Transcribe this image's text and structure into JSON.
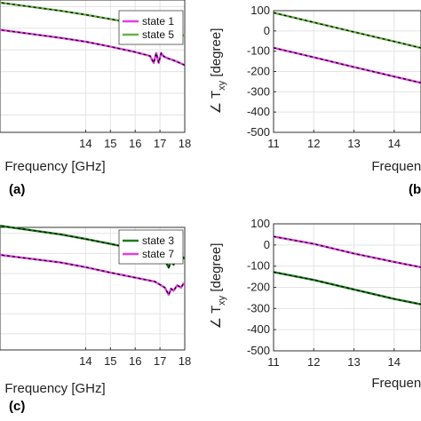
{
  "chart_data": [
    {
      "panel": "a",
      "panel_label": "(a)",
      "type": "line",
      "xlabel": "Frequency [GHz]",
      "ylabel": "",
      "xlim": [
        10.4,
        18
      ],
      "ylim": [
        -480,
        130
      ],
      "xticks": [
        14,
        15,
        16,
        17,
        18
      ],
      "yticks": [],
      "grid": true,
      "legend": "top-right",
      "legend_entries": [
        {
          "name": "state 1",
          "color": "#e040e0"
        },
        {
          "name": "state 5",
          "color": "#6ab04c"
        }
      ],
      "series": [
        {
          "name": "state 5",
          "color": "#6ab04c",
          "dashed_overlay": true,
          "x": [
            10.4,
            13,
            14,
            15,
            16,
            16.6,
            16.75,
            16.85,
            16.95,
            17.05,
            17.15,
            17.3,
            17.6,
            18
          ],
          "y": [
            120,
            80,
            62,
            42,
            22,
            5,
            -25,
            15,
            -25,
            18,
            0,
            -5,
            -18,
            -35
          ]
        },
        {
          "name": "state 1",
          "color": "#e040e0",
          "dashed_overlay": true,
          "x": [
            10.4,
            13,
            14,
            15,
            16,
            16.6,
            16.75,
            16.85,
            16.95,
            17.05,
            17.15,
            17.3,
            17.6,
            18
          ],
          "y": [
            -5,
            -45,
            -62,
            -85,
            -110,
            -128,
            -160,
            -115,
            -160,
            -115,
            -130,
            -138,
            -150,
            -170
          ]
        }
      ]
    },
    {
      "panel": "b",
      "panel_label": "(b)",
      "type": "line",
      "xlabel": "Frequency [GHz]",
      "ylabel": "∠ T_xy [degree]",
      "xlim": [
        11,
        14.8
      ],
      "ylim": [
        -500,
        100
      ],
      "xticks": [
        11,
        12,
        13,
        14
      ],
      "yticks": [
        100,
        0,
        -100,
        -200,
        -300,
        -400,
        -500
      ],
      "grid": true,
      "series": [
        {
          "name": "state 5",
          "color": "#6ab04c",
          "dashed_overlay": true,
          "x": [
            11,
            12,
            13,
            14,
            14.8
          ],
          "y": [
            90,
            42,
            -5,
            -52,
            -90
          ]
        },
        {
          "name": "state 1",
          "color": "#e040e0",
          "dashed_overlay": true,
          "x": [
            11,
            12,
            13,
            14,
            14.8
          ],
          "y": [
            -83,
            -130,
            -178,
            -225,
            -262
          ]
        }
      ]
    },
    {
      "panel": "c",
      "panel_label": "(c)",
      "type": "line",
      "xlabel": "Frequency [GHz]",
      "ylabel": "",
      "xlim": [
        10.4,
        18
      ],
      "ylim": [
        -480,
        130
      ],
      "xticks": [
        14,
        15,
        16,
        17,
        18
      ],
      "yticks": [],
      "grid": true,
      "legend": "top-right",
      "legend_entries": [
        {
          "name": "state 3",
          "color": "#1e7b1e"
        },
        {
          "name": "state 7",
          "color": "#e040e0"
        }
      ],
      "series": [
        {
          "name": "state 3",
          "color": "#1e7b1e",
          "dashed_overlay": true,
          "x": [
            10.4,
            13,
            14,
            15,
            16,
            16.8,
            17.2,
            17.35,
            17.45,
            17.55,
            17.7,
            17.85,
            17.95,
            18
          ],
          "y": [
            140,
            95,
            72,
            48,
            22,
            0,
            -35,
            -70,
            -35,
            -55,
            -25,
            -40,
            -20,
            -25
          ]
        },
        {
          "name": "state 7",
          "color": "#e040e0",
          "dashed_overlay": true,
          "x": [
            10.4,
            13,
            14,
            15,
            16,
            16.8,
            17.2,
            17.35,
            17.45,
            17.55,
            17.7,
            17.85,
            17.95,
            18
          ],
          "y": [
            -5,
            -45,
            -68,
            -95,
            -120,
            -140,
            -170,
            -205,
            -175,
            -185,
            -158,
            -170,
            -150,
            -155
          ]
        }
      ]
    },
    {
      "panel": "d",
      "panel_label": "",
      "type": "line",
      "xlabel": "Frequency [GHz]",
      "ylabel": "∠ T_xy [degree]",
      "xlim": [
        11,
        14.8
      ],
      "ylim": [
        -500,
        100
      ],
      "xticks": [
        11,
        12,
        13,
        14
      ],
      "yticks": [
        100,
        0,
        -100,
        -200,
        -300,
        -400,
        -500
      ],
      "grid": true,
      "series": [
        {
          "name": "state 7",
          "color": "#e040e0",
          "dashed_overlay": true,
          "x": [
            11,
            12,
            13,
            14,
            14.8
          ],
          "y": [
            40,
            5,
            -40,
            -80,
            -110
          ]
        },
        {
          "name": "state 3",
          "color": "#1e7b1e",
          "dashed_overlay": true,
          "x": [
            11,
            12,
            13,
            14,
            14.8
          ],
          "y": [
            -128,
            -165,
            -210,
            -255,
            -285
          ]
        }
      ]
    }
  ]
}
